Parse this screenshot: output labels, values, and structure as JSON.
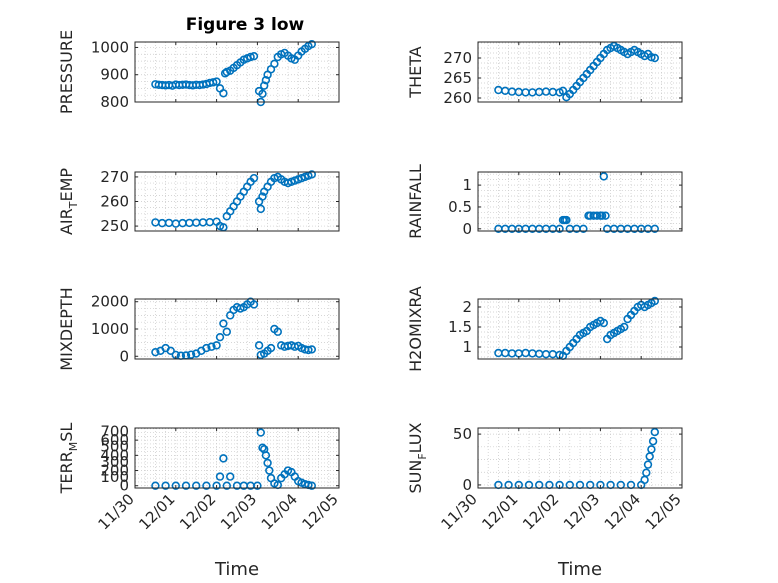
{
  "figure": {
    "title": "Figure 3 low"
  },
  "chart_data": [
    {
      "type": "scatter",
      "id": "pressure",
      "ylabel": "PRESSURE",
      "ylabel_sub": null,
      "xlabel": "",
      "xlim": [
        "2023-11-30",
        "2023-12-05"
      ],
      "ylim": [
        800,
        1020
      ],
      "yticks": [
        800,
        900,
        1000
      ],
      "xticks": [],
      "grid": "dotted",
      "series": [
        {
          "x": [
            "2023-11-30T12:00",
            "2023-11-30T14:00",
            "2023-11-30T16:00",
            "2023-11-30T18:00",
            "2023-11-30T20:00",
            "2023-11-30T22:00",
            "2023-12-01T00:00",
            "2023-12-01T02:00",
            "2023-12-01T04:00",
            "2023-12-01T06:00",
            "2023-12-01T08:00",
            "2023-12-01T10:00",
            "2023-12-01T12:00",
            "2023-12-01T14:00",
            "2023-12-01T16:00",
            "2023-12-01T18:00",
            "2023-12-01T20:00",
            "2023-12-01T22:00",
            "2023-12-02T00:00",
            "2023-12-02T02:00",
            "2023-12-02T04:00",
            "2023-12-02T05:00",
            "2023-12-02T06:00",
            "2023-12-02T08:00",
            "2023-12-02T10:00",
            "2023-12-02T12:00",
            "2023-12-02T14:00",
            "2023-12-02T16:00",
            "2023-12-02T18:00",
            "2023-12-02T20:00",
            "2023-12-02T22:00",
            "2023-12-03T01:00",
            "2023-12-03T02:00",
            "2023-12-03T03:00",
            "2023-12-03T04:00",
            "2023-12-03T05:00",
            "2023-12-03T06:00",
            "2023-12-03T08:00",
            "2023-12-03T10:00",
            "2023-12-03T12:00",
            "2023-12-03T14:00",
            "2023-12-03T16:00",
            "2023-12-03T18:00",
            "2023-12-03T20:00",
            "2023-12-03T22:00",
            "2023-12-04T00:00",
            "2023-12-04T02:00",
            "2023-12-04T04:00",
            "2023-12-04T06:00",
            "2023-12-04T08:00"
          ],
          "y": [
            865,
            863,
            862,
            861,
            862,
            860,
            864,
            862,
            863,
            864,
            862,
            861,
            863,
            862,
            864,
            866,
            870,
            872,
            875,
            850,
            832,
            905,
            910,
            915,
            925,
            935,
            945,
            955,
            960,
            965,
            968,
            840,
            800,
            830,
            860,
            880,
            900,
            920,
            940,
            965,
            975,
            980,
            970,
            960,
            955,
            970,
            985,
            995,
            1005,
            1012
          ]
        }
      ]
    },
    {
      "type": "scatter",
      "id": "theta",
      "ylabel": "THETA",
      "ylabel_sub": null,
      "xlabel": "",
      "xlim": [
        "2023-11-30",
        "2023-12-05"
      ],
      "ylim": [
        259,
        274
      ],
      "yticks": [
        260,
        265,
        270
      ],
      "xticks": [],
      "grid": "dotted",
      "series": [
        {
          "x": [
            "2023-11-30T12:00",
            "2023-11-30T16:00",
            "2023-11-30T20:00",
            "2023-12-01T00:00",
            "2023-12-01T04:00",
            "2023-12-01T08:00",
            "2023-12-01T12:00",
            "2023-12-01T16:00",
            "2023-12-01T20:00",
            "2023-12-02T00:00",
            "2023-12-02T02:00",
            "2023-12-02T04:00",
            "2023-12-02T06:00",
            "2023-12-02T08:00",
            "2023-12-02T10:00",
            "2023-12-02T12:00",
            "2023-12-02T14:00",
            "2023-12-02T16:00",
            "2023-12-02T18:00",
            "2023-12-02T20:00",
            "2023-12-02T22:00",
            "2023-12-03T00:00",
            "2023-12-03T02:00",
            "2023-12-03T04:00",
            "2023-12-03T06:00",
            "2023-12-03T08:00",
            "2023-12-03T10:00",
            "2023-12-03T12:00",
            "2023-12-03T14:00",
            "2023-12-03T16:00",
            "2023-12-03T18:00",
            "2023-12-03T20:00",
            "2023-12-03T22:00",
            "2023-12-04T00:00",
            "2023-12-04T02:00",
            "2023-12-04T04:00",
            "2023-12-04T06:00",
            "2023-12-04T08:00"
          ],
          "y": [
            262,
            261.8,
            261.6,
            261.5,
            261.4,
            261.4,
            261.5,
            261.6,
            261.5,
            261.4,
            261.8,
            260.2,
            261,
            262,
            263,
            264,
            265,
            266,
            267,
            268,
            269,
            270,
            271,
            272,
            272.5,
            273,
            272.5,
            272,
            271.5,
            271,
            271.5,
            272,
            271.5,
            271,
            270.5,
            271,
            270.2,
            270
          ]
        }
      ]
    },
    {
      "type": "scatter",
      "id": "air_temp",
      "ylabel": "AIR",
      "ylabel_sub": "T",
      "ylabel_suffix": "EMP",
      "xlabel": "",
      "xlim": [
        "2023-11-30",
        "2023-12-05"
      ],
      "ylim": [
        248,
        272
      ],
      "yticks": [
        250,
        260,
        270
      ],
      "xticks": [],
      "grid": "dotted",
      "series": [
        {
          "x": [
            "2023-11-30T12:00",
            "2023-11-30T16:00",
            "2023-11-30T20:00",
            "2023-12-01T00:00",
            "2023-12-01T04:00",
            "2023-12-01T08:00",
            "2023-12-01T12:00",
            "2023-12-01T16:00",
            "2023-12-01T20:00",
            "2023-12-02T00:00",
            "2023-12-02T02:00",
            "2023-12-02T04:00",
            "2023-12-02T06:00",
            "2023-12-02T08:00",
            "2023-12-02T10:00",
            "2023-12-02T12:00",
            "2023-12-02T14:00",
            "2023-12-02T16:00",
            "2023-12-02T18:00",
            "2023-12-02T20:00",
            "2023-12-02T22:00",
            "2023-12-03T01:00",
            "2023-12-03T02:00",
            "2023-12-03T03:00",
            "2023-12-03T04:00",
            "2023-12-03T06:00",
            "2023-12-03T08:00",
            "2023-12-03T10:00",
            "2023-12-03T12:00",
            "2023-12-03T14:00",
            "2023-12-03T16:00",
            "2023-12-03T18:00",
            "2023-12-03T20:00",
            "2023-12-03T22:00",
            "2023-12-04T00:00",
            "2023-12-04T02:00",
            "2023-12-04T04:00",
            "2023-12-04T06:00",
            "2023-12-04T08:00"
          ],
          "y": [
            251.5,
            251.2,
            251.3,
            251,
            251.2,
            251.3,
            251.4,
            251.5,
            251.6,
            251.8,
            250,
            249.5,
            254,
            256,
            258,
            260,
            262,
            264,
            266,
            268,
            269.5,
            260,
            257,
            262,
            264,
            266,
            268,
            269.5,
            270,
            269,
            268,
            267.5,
            268,
            268.5,
            269,
            269.5,
            270,
            270.5,
            271
          ]
        }
      ]
    },
    {
      "type": "scatter",
      "id": "rainfall",
      "ylabel": "RAINFALL",
      "ylabel_sub": null,
      "xlabel": "",
      "xlim": [
        "2023-11-30",
        "2023-12-05"
      ],
      "ylim": [
        -0.05,
        1.3
      ],
      "yticks": [
        0,
        0.5,
        1
      ],
      "xticks": [],
      "grid": "dotted",
      "series": [
        {
          "x": [
            "2023-11-30T12:00",
            "2023-11-30T16:00",
            "2023-11-30T20:00",
            "2023-12-01T00:00",
            "2023-12-01T04:00",
            "2023-12-01T08:00",
            "2023-12-01T12:00",
            "2023-12-01T16:00",
            "2023-12-01T20:00",
            "2023-12-02T00:00",
            "2023-12-02T02:00",
            "2023-12-02T03:00",
            "2023-12-02T04:00",
            "2023-12-02T06:00",
            "2023-12-02T10:00",
            "2023-12-02T14:00",
            "2023-12-02T17:00",
            "2023-12-02T18:00",
            "2023-12-02T20:00",
            "2023-12-02T22:00",
            "2023-12-03T00:00",
            "2023-12-03T01:00",
            "2023-12-03T02:00",
            "2023-12-03T03:00",
            "2023-12-03T04:00",
            "2023-12-03T08:00",
            "2023-12-03T12:00",
            "2023-12-03T16:00",
            "2023-12-03T20:00",
            "2023-12-04T00:00",
            "2023-12-04T04:00",
            "2023-12-04T08:00"
          ],
          "y": [
            0,
            0,
            0,
            0,
            0,
            0,
            0,
            0,
            0,
            0,
            0.2,
            0.2,
            0.2,
            0,
            0,
            0,
            0.3,
            0.3,
            0.3,
            0.3,
            0.3,
            0.3,
            1.2,
            0.3,
            0,
            0,
            0,
            0,
            0,
            0,
            0,
            0
          ]
        }
      ]
    },
    {
      "type": "scatter",
      "id": "mixdepth",
      "ylabel": "MIXDEPTH",
      "ylabel_sub": null,
      "xlabel": "",
      "xlim": [
        "2023-11-30",
        "2023-12-05"
      ],
      "ylim": [
        -100,
        2100
      ],
      "yticks": [
        0,
        1000,
        2000
      ],
      "xticks": [],
      "grid": "dotted",
      "series": [
        {
          "x": [
            "2023-11-30T12:00",
            "2023-11-30T15:00",
            "2023-11-30T18:00",
            "2023-11-30T21:00",
            "2023-12-01T00:00",
            "2023-12-01T03:00",
            "2023-12-01T06:00",
            "2023-12-01T09:00",
            "2023-12-01T12:00",
            "2023-12-01T15:00",
            "2023-12-01T18:00",
            "2023-12-01T21:00",
            "2023-12-02T00:00",
            "2023-12-02T02:00",
            "2023-12-02T04:00",
            "2023-12-02T06:00",
            "2023-12-02T08:00",
            "2023-12-02T10:00",
            "2023-12-02T12:00",
            "2023-12-02T14:00",
            "2023-12-02T16:00",
            "2023-12-02T18:00",
            "2023-12-02T20:00",
            "2023-12-02T22:00",
            "2023-12-03T01:00",
            "2023-12-03T02:00",
            "2023-12-03T04:00",
            "2023-12-03T06:00",
            "2023-12-03T08:00",
            "2023-12-03T10:00",
            "2023-12-03T12:00",
            "2023-12-03T14:00",
            "2023-12-03T16:00",
            "2023-12-03T18:00",
            "2023-12-03T20:00",
            "2023-12-03T22:00",
            "2023-12-04T00:00",
            "2023-12-04T02:00",
            "2023-12-04T04:00",
            "2023-12-04T06:00",
            "2023-12-04T08:00"
          ],
          "y": [
            150,
            200,
            300,
            200,
            50,
            20,
            30,
            60,
            100,
            200,
            300,
            350,
            400,
            700,
            1200,
            900,
            1500,
            1700,
            1800,
            1750,
            1800,
            1900,
            2000,
            1900,
            400,
            50,
            100,
            200,
            300,
            1000,
            900,
            400,
            350,
            380,
            400,
            350,
            380,
            300,
            250,
            230,
            250
          ]
        }
      ]
    },
    {
      "type": "scatter",
      "id": "h2omixra",
      "ylabel": "H2OMIXRA",
      "ylabel_sub": null,
      "xlabel": "",
      "xlim": [
        "2023-11-30",
        "2023-12-05"
      ],
      "ylim": [
        0.7,
        2.2
      ],
      "yticks": [
        1,
        1.5,
        2
      ],
      "xticks": [],
      "grid": "dotted",
      "series": [
        {
          "x": [
            "2023-11-30T12:00",
            "2023-11-30T16:00",
            "2023-11-30T20:00",
            "2023-12-01T00:00",
            "2023-12-01T04:00",
            "2023-12-01T08:00",
            "2023-12-01T12:00",
            "2023-12-01T16:00",
            "2023-12-01T20:00",
            "2023-12-02T00:00",
            "2023-12-02T02:00",
            "2023-12-02T04:00",
            "2023-12-02T06:00",
            "2023-12-02T08:00",
            "2023-12-02T10:00",
            "2023-12-02T12:00",
            "2023-12-02T14:00",
            "2023-12-02T16:00",
            "2023-12-02T18:00",
            "2023-12-02T20:00",
            "2023-12-02T22:00",
            "2023-12-03T00:00",
            "2023-12-03T02:00",
            "2023-12-03T04:00",
            "2023-12-03T06:00",
            "2023-12-03T08:00",
            "2023-12-03T10:00",
            "2023-12-03T12:00",
            "2023-12-03T14:00",
            "2023-12-03T16:00",
            "2023-12-03T18:00",
            "2023-12-03T20:00",
            "2023-12-03T22:00",
            "2023-12-04T00:00",
            "2023-12-04T02:00",
            "2023-12-04T04:00",
            "2023-12-04T06:00",
            "2023-12-04T08:00"
          ],
          "y": [
            0.85,
            0.85,
            0.84,
            0.84,
            0.85,
            0.84,
            0.83,
            0.82,
            0.82,
            0.8,
            0.78,
            0.9,
            1.0,
            1.1,
            1.2,
            1.3,
            1.35,
            1.4,
            1.5,
            1.55,
            1.6,
            1.65,
            1.6,
            1.2,
            1.3,
            1.35,
            1.4,
            1.45,
            1.5,
            1.7,
            1.8,
            1.9,
            2.0,
            2.05,
            2.0,
            2.05,
            2.1,
            2.15
          ]
        }
      ]
    },
    {
      "type": "scatter",
      "id": "terr_msl",
      "ylabel": "TERR",
      "ylabel_sub": "M",
      "ylabel_suffix": "SL",
      "xlabel": "Time",
      "xlim": [
        "2023-11-30",
        "2023-12-05"
      ],
      "ylim": [
        -30,
        760
      ],
      "yticks": [
        0,
        200,
        400,
        600
      ],
      "yticks_minor_labels": [
        100,
        300,
        500,
        700
      ],
      "xticks": [
        "11/30",
        "12/01",
        "12/02",
        "12/03",
        "12/04",
        "12/05"
      ],
      "grid": "dotted",
      "series": [
        {
          "x": [
            "2023-11-30T12:00",
            "2023-11-30T18:00",
            "2023-12-01T00:00",
            "2023-12-01T06:00",
            "2023-12-01T12:00",
            "2023-12-01T18:00",
            "2023-12-02T00:00",
            "2023-12-02T02:00",
            "2023-12-02T04:00",
            "2023-12-02T06:00",
            "2023-12-02T08:00",
            "2023-12-02T12:00",
            "2023-12-02T16:00",
            "2023-12-02T20:00",
            "2023-12-03T00:00",
            "2023-12-03T02:00",
            "2023-12-03T03:00",
            "2023-12-03T04:00",
            "2023-12-03T05:00",
            "2023-12-03T06:00",
            "2023-12-03T07:00",
            "2023-12-03T08:00",
            "2023-12-03T10:00",
            "2023-12-03T12:00",
            "2023-12-03T14:00",
            "2023-12-03T16:00",
            "2023-12-03T18:00",
            "2023-12-03T20:00",
            "2023-12-03T22:00",
            "2023-12-04T00:00",
            "2023-12-04T02:00",
            "2023-12-04T04:00",
            "2023-12-04T06:00",
            "2023-12-04T08:00"
          ],
          "y": [
            0,
            0,
            0,
            0,
            0,
            0,
            0,
            120,
            360,
            0,
            120,
            0,
            0,
            0,
            0,
            700,
            500,
            480,
            400,
            300,
            200,
            100,
            30,
            10,
            100,
            150,
            200,
            180,
            120,
            60,
            40,
            20,
            10,
            0
          ]
        }
      ]
    },
    {
      "type": "scatter",
      "id": "sun_flux",
      "ylabel": "SUN",
      "ylabel_sub": "F",
      "ylabel_suffix": "LUX",
      "xlabel": "Time",
      "xlim": [
        "2023-11-30",
        "2023-12-05"
      ],
      "ylim": [
        -3,
        56
      ],
      "yticks": [
        0,
        50
      ],
      "xticks": [
        "11/30",
        "12/01",
        "12/02",
        "12/03",
        "12/04",
        "12/05"
      ],
      "grid": "dotted",
      "series": [
        {
          "x": [
            "2023-11-30T12:00",
            "2023-11-30T18:00",
            "2023-12-01T00:00",
            "2023-12-01T06:00",
            "2023-12-01T12:00",
            "2023-12-01T18:00",
            "2023-12-02T00:00",
            "2023-12-02T06:00",
            "2023-12-02T12:00",
            "2023-12-02T18:00",
            "2023-12-03T00:00",
            "2023-12-03T06:00",
            "2023-12-03T12:00",
            "2023-12-03T18:00",
            "2023-12-04T00:00",
            "2023-12-04T02:00",
            "2023-12-04T03:00",
            "2023-12-04T04:00",
            "2023-12-04T05:00",
            "2023-12-04T06:00",
            "2023-12-04T07:00",
            "2023-12-04T08:00"
          ],
          "y": [
            0,
            0,
            0,
            0,
            0,
            0,
            0,
            0,
            0,
            0,
            0,
            0,
            0,
            0,
            0,
            5,
            12,
            20,
            28,
            35,
            43,
            52
          ]
        }
      ]
    }
  ],
  "style": {
    "marker_color": "#0072BD",
    "axis_color": "#262626",
    "grid_color": "#c8c8c8"
  }
}
